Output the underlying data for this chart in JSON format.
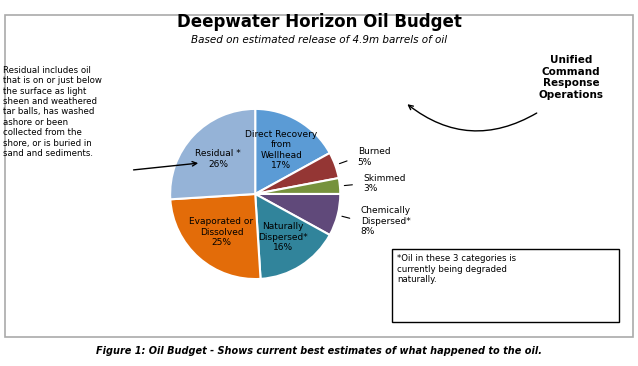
{
  "title": "Deepwater Horizon Oil Budget",
  "subtitle": "Based on estimated release of 4.9m barrels of oil",
  "figure_caption": "Figure 1: Oil Budget - Shows current best estimates of what happened to the oil.",
  "slices": [
    {
      "label": "Direct Recovery\nfrom\nWellhead\n17%",
      "value": 17,
      "color": "#5b9bd5",
      "inside": true
    },
    {
      "label": "Burned\n5%",
      "value": 5,
      "color": "#943634",
      "inside": false
    },
    {
      "label": "Skimmed\n3%",
      "value": 3,
      "color": "#76923c",
      "inside": false
    },
    {
      "label": "Chemically\nDispersed*\n8%",
      "value": 8,
      "color": "#60497a",
      "inside": false
    },
    {
      "label": "Naturally\nDispersed*\n16%",
      "value": 16,
      "color": "#31849b",
      "inside": true
    },
    {
      "label": "Evaporated or\nDissolved\n25%",
      "value": 25,
      "color": "#e36c09",
      "inside": true
    },
    {
      "label": "Residual *\n26%",
      "value": 26,
      "color": "#95b3d7",
      "inside": true
    }
  ],
  "residual_note": "Residual includes oil\nthat is on or just below\nthe surface as light\nsheen and weathered\ntar balls, has washed\nashore or been\ncollected from the\nshore, or is buried in\nsand and sediments.",
  "unified_command": "Unified\nCommand\nResponse\nOperations",
  "footnote": "*Oil in these 3 categories is\ncurrently being degraded\nnaturally.",
  "background_color": "#ffffff"
}
